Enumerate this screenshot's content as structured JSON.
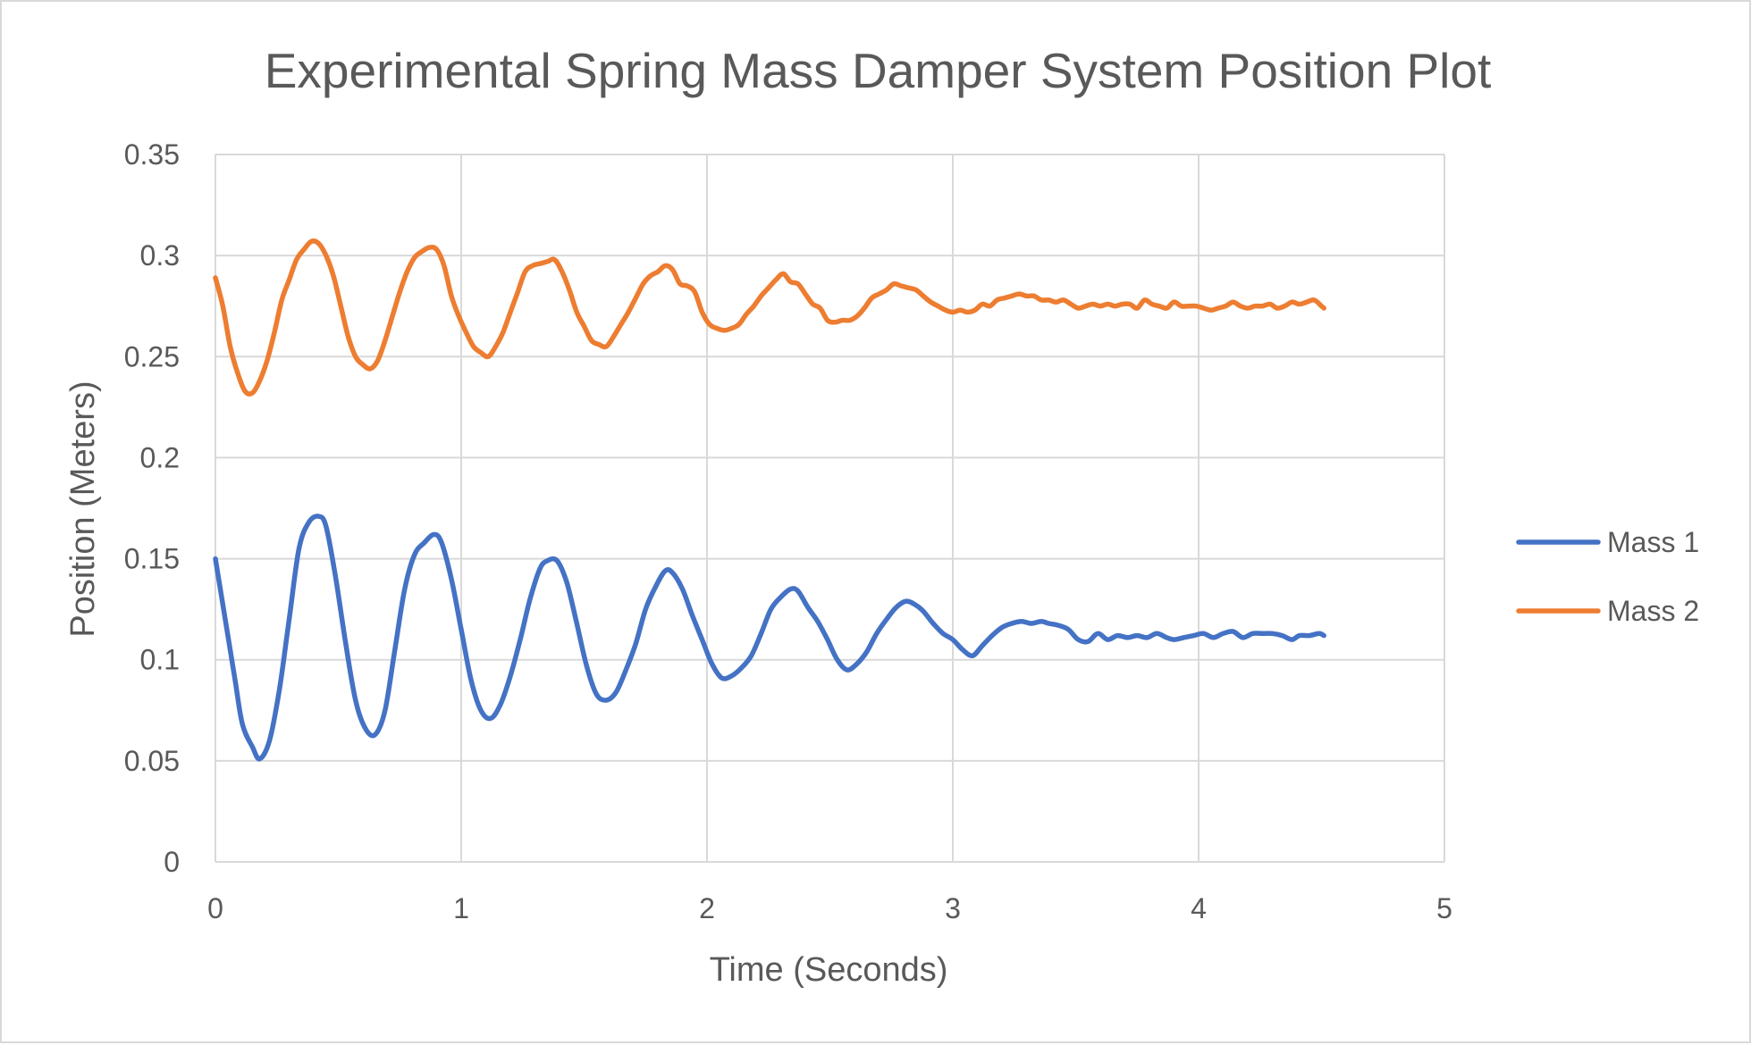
{
  "chart_data": {
    "type": "line",
    "title": "Experimental Spring Mass Damper System Position Plot",
    "xlabel": "Time (Seconds)",
    "ylabel": "Position (Meters)",
    "xlim": [
      0,
      5
    ],
    "ylim": [
      0,
      0.35
    ],
    "x_ticks": [
      "0",
      "1",
      "2",
      "3",
      "4",
      "5"
    ],
    "y_ticks": [
      "0",
      "0.05",
      "0.1",
      "0.15",
      "0.2",
      "0.25",
      "0.3",
      "0.35"
    ],
    "grid": true,
    "legend_position": "right",
    "series": [
      {
        "name": "Mass 1",
        "color": "#4472c4",
        "points": [
          [
            0.0,
            0.15
          ],
          [
            0.04,
            0.12
          ],
          [
            0.08,
            0.09
          ],
          [
            0.11,
            0.068
          ],
          [
            0.15,
            0.057
          ],
          [
            0.18,
            0.051
          ],
          [
            0.22,
            0.06
          ],
          [
            0.26,
            0.085
          ],
          [
            0.3,
            0.12
          ],
          [
            0.34,
            0.155
          ],
          [
            0.38,
            0.168
          ],
          [
            0.42,
            0.171
          ],
          [
            0.45,
            0.166
          ],
          [
            0.49,
            0.14
          ],
          [
            0.53,
            0.108
          ],
          [
            0.57,
            0.08
          ],
          [
            0.61,
            0.066
          ],
          [
            0.65,
            0.063
          ],
          [
            0.69,
            0.075
          ],
          [
            0.73,
            0.105
          ],
          [
            0.77,
            0.135
          ],
          [
            0.81,
            0.152
          ],
          [
            0.85,
            0.158
          ],
          [
            0.89,
            0.162
          ],
          [
            0.92,
            0.158
          ],
          [
            0.96,
            0.14
          ],
          [
            1.0,
            0.115
          ],
          [
            1.04,
            0.09
          ],
          [
            1.08,
            0.075
          ],
          [
            1.12,
            0.071
          ],
          [
            1.16,
            0.078
          ],
          [
            1.2,
            0.092
          ],
          [
            1.24,
            0.11
          ],
          [
            1.28,
            0.13
          ],
          [
            1.32,
            0.145
          ],
          [
            1.35,
            0.149
          ],
          [
            1.39,
            0.149
          ],
          [
            1.43,
            0.138
          ],
          [
            1.47,
            0.118
          ],
          [
            1.51,
            0.097
          ],
          [
            1.55,
            0.083
          ],
          [
            1.59,
            0.08
          ],
          [
            1.63,
            0.084
          ],
          [
            1.67,
            0.095
          ],
          [
            1.71,
            0.108
          ],
          [
            1.75,
            0.125
          ],
          [
            1.79,
            0.136
          ],
          [
            1.83,
            0.144
          ],
          [
            1.86,
            0.143
          ],
          [
            1.9,
            0.135
          ],
          [
            1.94,
            0.122
          ],
          [
            1.98,
            0.11
          ],
          [
            2.02,
            0.098
          ],
          [
            2.06,
            0.091
          ],
          [
            2.1,
            0.092
          ],
          [
            2.14,
            0.096
          ],
          [
            2.18,
            0.102
          ],
          [
            2.22,
            0.113
          ],
          [
            2.26,
            0.125
          ],
          [
            2.3,
            0.131
          ],
          [
            2.34,
            0.135
          ],
          [
            2.37,
            0.134
          ],
          [
            2.41,
            0.126
          ],
          [
            2.45,
            0.119
          ],
          [
            2.49,
            0.11
          ],
          [
            2.53,
            0.1
          ],
          [
            2.57,
            0.095
          ],
          [
            2.61,
            0.098
          ],
          [
            2.65,
            0.104
          ],
          [
            2.69,
            0.113
          ],
          [
            2.73,
            0.12
          ],
          [
            2.77,
            0.126
          ],
          [
            2.81,
            0.129
          ],
          [
            2.85,
            0.127
          ],
          [
            2.88,
            0.124
          ],
          [
            2.92,
            0.118
          ],
          [
            2.96,
            0.113
          ],
          [
            3.0,
            0.11
          ],
          [
            3.04,
            0.105
          ],
          [
            3.08,
            0.102
          ],
          [
            3.12,
            0.107
          ],
          [
            3.16,
            0.112
          ],
          [
            3.2,
            0.116
          ],
          [
            3.24,
            0.118
          ],
          [
            3.28,
            0.119
          ],
          [
            3.32,
            0.118
          ],
          [
            3.36,
            0.119
          ],
          [
            3.39,
            0.118
          ],
          [
            3.43,
            0.117
          ],
          [
            3.47,
            0.115
          ],
          [
            3.51,
            0.11
          ],
          [
            3.55,
            0.109
          ],
          [
            3.59,
            0.113
          ],
          [
            3.63,
            0.11
          ],
          [
            3.67,
            0.112
          ],
          [
            3.71,
            0.111
          ],
          [
            3.75,
            0.112
          ],
          [
            3.79,
            0.111
          ],
          [
            3.83,
            0.113
          ],
          [
            3.87,
            0.111
          ],
          [
            3.9,
            0.11
          ],
          [
            3.94,
            0.111
          ],
          [
            3.98,
            0.112
          ],
          [
            4.02,
            0.113
          ],
          [
            4.06,
            0.111
          ],
          [
            4.1,
            0.113
          ],
          [
            4.14,
            0.114
          ],
          [
            4.18,
            0.111
          ],
          [
            4.22,
            0.113
          ],
          [
            4.26,
            0.113
          ],
          [
            4.3,
            0.113
          ],
          [
            4.34,
            0.112
          ],
          [
            4.38,
            0.11
          ],
          [
            4.41,
            0.112
          ],
          [
            4.45,
            0.112
          ],
          [
            4.49,
            0.113
          ],
          [
            4.51,
            0.112
          ]
        ]
      },
      {
        "name": "Mass 2",
        "color": "#ed7d31",
        "points": [
          [
            0.0,
            0.289
          ],
          [
            0.03,
            0.275
          ],
          [
            0.06,
            0.255
          ],
          [
            0.09,
            0.242
          ],
          [
            0.12,
            0.233
          ],
          [
            0.15,
            0.232
          ],
          [
            0.18,
            0.238
          ],
          [
            0.21,
            0.248
          ],
          [
            0.24,
            0.262
          ],
          [
            0.27,
            0.278
          ],
          [
            0.3,
            0.288
          ],
          [
            0.33,
            0.298
          ],
          [
            0.36,
            0.303
          ],
          [
            0.39,
            0.307
          ],
          [
            0.42,
            0.306
          ],
          [
            0.45,
            0.3
          ],
          [
            0.48,
            0.29
          ],
          [
            0.51,
            0.275
          ],
          [
            0.54,
            0.26
          ],
          [
            0.57,
            0.25
          ],
          [
            0.6,
            0.246
          ],
          [
            0.63,
            0.244
          ],
          [
            0.66,
            0.248
          ],
          [
            0.69,
            0.258
          ],
          [
            0.72,
            0.27
          ],
          [
            0.75,
            0.282
          ],
          [
            0.78,
            0.292
          ],
          [
            0.81,
            0.299
          ],
          [
            0.84,
            0.302
          ],
          [
            0.87,
            0.304
          ],
          [
            0.9,
            0.303
          ],
          [
            0.93,
            0.295
          ],
          [
            0.96,
            0.28
          ],
          [
            0.99,
            0.27
          ],
          [
            1.02,
            0.262
          ],
          [
            1.05,
            0.255
          ],
          [
            1.08,
            0.252
          ],
          [
            1.11,
            0.25
          ],
          [
            1.14,
            0.255
          ],
          [
            1.17,
            0.262
          ],
          [
            1.2,
            0.272
          ],
          [
            1.23,
            0.282
          ],
          [
            1.26,
            0.292
          ],
          [
            1.29,
            0.295
          ],
          [
            1.32,
            0.296
          ],
          [
            1.35,
            0.297
          ],
          [
            1.38,
            0.298
          ],
          [
            1.41,
            0.292
          ],
          [
            1.44,
            0.283
          ],
          [
            1.47,
            0.272
          ],
          [
            1.5,
            0.265
          ],
          [
            1.53,
            0.258
          ],
          [
            1.56,
            0.256
          ],
          [
            1.59,
            0.255
          ],
          [
            1.62,
            0.26
          ],
          [
            1.65,
            0.266
          ],
          [
            1.68,
            0.272
          ],
          [
            1.71,
            0.279
          ],
          [
            1.74,
            0.286
          ],
          [
            1.77,
            0.29
          ],
          [
            1.8,
            0.292
          ],
          [
            1.83,
            0.295
          ],
          [
            1.86,
            0.293
          ],
          [
            1.89,
            0.286
          ],
          [
            1.92,
            0.285
          ],
          [
            1.95,
            0.282
          ],
          [
            1.98,
            0.272
          ],
          [
            2.01,
            0.266
          ],
          [
            2.04,
            0.264
          ],
          [
            2.07,
            0.263
          ],
          [
            2.1,
            0.264
          ],
          [
            2.13,
            0.266
          ],
          [
            2.16,
            0.271
          ],
          [
            2.19,
            0.275
          ],
          [
            2.22,
            0.28
          ],
          [
            2.25,
            0.284
          ],
          [
            2.28,
            0.288
          ],
          [
            2.31,
            0.291
          ],
          [
            2.34,
            0.287
          ],
          [
            2.37,
            0.286
          ],
          [
            2.4,
            0.281
          ],
          [
            2.43,
            0.276
          ],
          [
            2.46,
            0.274
          ],
          [
            2.49,
            0.268
          ],
          [
            2.52,
            0.267
          ],
          [
            2.55,
            0.268
          ],
          [
            2.58,
            0.268
          ],
          [
            2.61,
            0.27
          ],
          [
            2.64,
            0.274
          ],
          [
            2.67,
            0.279
          ],
          [
            2.7,
            0.281
          ],
          [
            2.73,
            0.283
          ],
          [
            2.76,
            0.286
          ],
          [
            2.79,
            0.285
          ],
          [
            2.82,
            0.284
          ],
          [
            2.85,
            0.283
          ],
          [
            2.88,
            0.28
          ],
          [
            2.91,
            0.277
          ],
          [
            2.94,
            0.275
          ],
          [
            2.97,
            0.273
          ],
          [
            3.0,
            0.272
          ],
          [
            3.03,
            0.273
          ],
          [
            3.06,
            0.272
          ],
          [
            3.09,
            0.273
          ],
          [
            3.12,
            0.276
          ],
          [
            3.15,
            0.275
          ],
          [
            3.18,
            0.278
          ],
          [
            3.21,
            0.279
          ],
          [
            3.24,
            0.28
          ],
          [
            3.27,
            0.281
          ],
          [
            3.3,
            0.28
          ],
          [
            3.33,
            0.28
          ],
          [
            3.36,
            0.278
          ],
          [
            3.39,
            0.278
          ],
          [
            3.42,
            0.277
          ],
          [
            3.45,
            0.278
          ],
          [
            3.48,
            0.276
          ],
          [
            3.51,
            0.274
          ],
          [
            3.54,
            0.275
          ],
          [
            3.57,
            0.276
          ],
          [
            3.6,
            0.275
          ],
          [
            3.63,
            0.276
          ],
          [
            3.66,
            0.275
          ],
          [
            3.69,
            0.276
          ],
          [
            3.72,
            0.276
          ],
          [
            3.75,
            0.274
          ],
          [
            3.78,
            0.278
          ],
          [
            3.81,
            0.276
          ],
          [
            3.84,
            0.275
          ],
          [
            3.87,
            0.274
          ],
          [
            3.9,
            0.277
          ],
          [
            3.93,
            0.275
          ],
          [
            3.96,
            0.275
          ],
          [
            3.99,
            0.275
          ],
          [
            4.02,
            0.274
          ],
          [
            4.05,
            0.273
          ],
          [
            4.08,
            0.274
          ],
          [
            4.11,
            0.275
          ],
          [
            4.14,
            0.277
          ],
          [
            4.17,
            0.275
          ],
          [
            4.2,
            0.274
          ],
          [
            4.23,
            0.275
          ],
          [
            4.26,
            0.275
          ],
          [
            4.29,
            0.276
          ],
          [
            4.32,
            0.274
          ],
          [
            4.35,
            0.275
          ],
          [
            4.38,
            0.277
          ],
          [
            4.41,
            0.276
          ],
          [
            4.44,
            0.277
          ],
          [
            4.47,
            0.278
          ],
          [
            4.5,
            0.275
          ],
          [
            4.51,
            0.274
          ]
        ]
      }
    ]
  }
}
